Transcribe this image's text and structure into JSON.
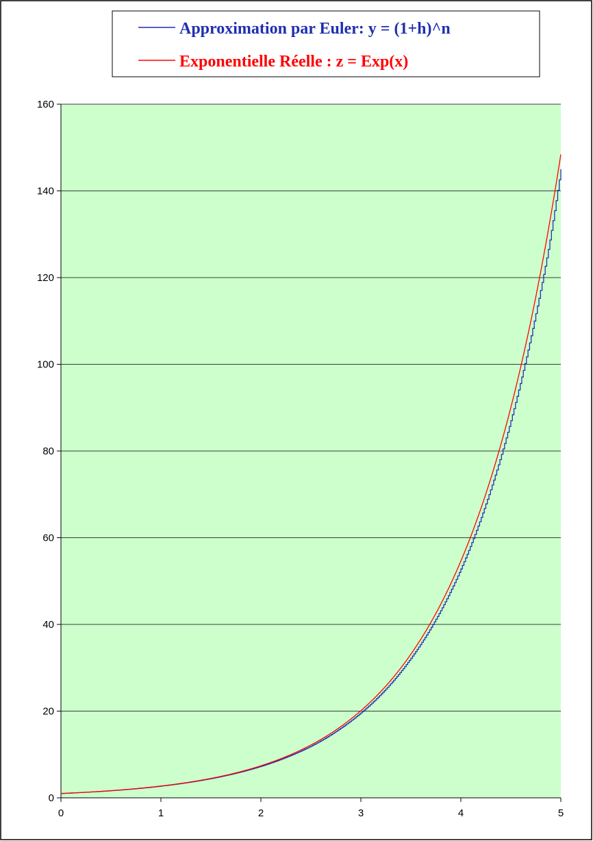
{
  "chart_data": {
    "type": "line",
    "title": "",
    "xlabel": "",
    "ylabel": "",
    "xlim": [
      0,
      5
    ],
    "ylim": [
      0,
      160
    ],
    "x_ticks": [
      0,
      1,
      2,
      3,
      4,
      5
    ],
    "y_ticks": [
      0,
      20,
      40,
      60,
      80,
      100,
      120,
      140,
      160
    ],
    "grid": "horizontal",
    "legend_position": "top",
    "plot_background": "#ccffcc",
    "series": [
      {
        "name": "Approximation par Euler: y = (1+h)^n",
        "color": "#1f2fb0",
        "step": true,
        "x": [
          0,
          0.25,
          0.5,
          0.75,
          1,
          1.25,
          1.5,
          1.75,
          2,
          2.25,
          2.5,
          2.75,
          3,
          3.25,
          3.5,
          3.75,
          4,
          4.125,
          4.25,
          4.375,
          4.5,
          4.625,
          4.75,
          4.875,
          5
        ],
        "values": [
          1,
          1.28,
          1.64,
          2.1,
          2.7,
          3.46,
          4.43,
          5.68,
          7.27,
          9.32,
          11.9,
          15.3,
          19.6,
          25.1,
          32.2,
          41.2,
          52.8,
          59.8,
          67.8,
          76.8,
          87.0,
          98.6,
          111.7,
          126.5,
          145.0
        ]
      },
      {
        "name": "Exponentielle Réelle : z = Exp(x)",
        "color": "#ff0000",
        "step": false,
        "x": [
          0,
          0.25,
          0.5,
          0.75,
          1,
          1.25,
          1.5,
          1.75,
          2,
          2.25,
          2.5,
          2.75,
          3,
          3.25,
          3.5,
          3.75,
          4,
          4.125,
          4.25,
          4.375,
          4.5,
          4.625,
          4.75,
          4.875,
          5
        ],
        "values": [
          1,
          1.28,
          1.65,
          2.12,
          2.72,
          3.49,
          4.48,
          5.75,
          7.39,
          9.49,
          12.18,
          15.64,
          20.09,
          25.79,
          33.12,
          42.52,
          54.6,
          61.87,
          70.11,
          79.44,
          90.02,
          102.01,
          115.58,
          130.97,
          148.41
        ]
      }
    ]
  }
}
